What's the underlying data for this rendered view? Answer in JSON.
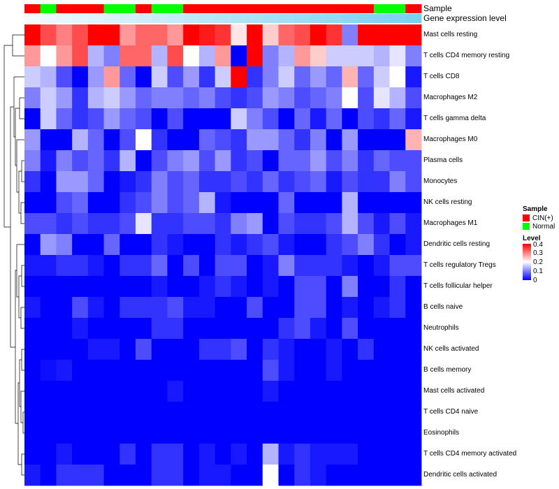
{
  "chart_data": {
    "type": "heatmap",
    "title": "",
    "annotations": {
      "sample_label": "Sample",
      "gene_label": "Gene expression level",
      "sample_track": [
        "CIN(+)",
        "Normal",
        "CIN(+)",
        "CIN(+)",
        "CIN(+)",
        "Normal",
        "Normal",
        "CIN(+)",
        "Normal",
        "Normal",
        "CIN(+)",
        "CIN(+)",
        "CIN(+)",
        "CIN(+)",
        "CIN(+)",
        "CIN(+)",
        "CIN(+)",
        "CIN(+)",
        "CIN(+)",
        "CIN(+)",
        "CIN(+)",
        "CIN(+)",
        "Normal",
        "Normal",
        "CIN(+)"
      ]
    },
    "rows": [
      "Mast cells resting",
      "T cells CD4 memory resting",
      "T cells CD8",
      "Macrophages M2",
      "T cells gamma delta",
      "Macrophages M0",
      "Plasma cells",
      "Monocytes",
      "NK cells resting",
      "Macrophages M1",
      "Dendritic cells resting",
      "T cells regulatory  Tregs",
      "T cells follicular helper",
      "B cells naive",
      "Neutrophils",
      "NK cells activated",
      "B cells memory",
      "Mast cells activated",
      "T cells CD4 naive",
      "Eosinophils",
      "T cells CD4 memory activated",
      "Dendritic cells activated"
    ],
    "values": [
      [
        0.4,
        0.34,
        0.3,
        0.34,
        0.4,
        0.4,
        0.28,
        0.32,
        0.32,
        0.28,
        0.4,
        0.38,
        0.36,
        0.22,
        0.4,
        0.24,
        0.32,
        0.34,
        0.4,
        0.36,
        0.1,
        0.4,
        0.4,
        0.4,
        0.4
      ],
      [
        0.28,
        0.2,
        0.28,
        0.34,
        0.14,
        0.1,
        0.32,
        0.32,
        0.14,
        0.34,
        0.2,
        0.14,
        0.28,
        0.0,
        0.4,
        0.1,
        0.14,
        0.28,
        0.24,
        0.16,
        0.16,
        0.16,
        0.14,
        0.18,
        0.1
      ],
      [
        0.16,
        0.14,
        0.06,
        0.0,
        0.12,
        0.28,
        0.08,
        0.0,
        0.16,
        0.06,
        0.12,
        0.04,
        0.16,
        0.4,
        0.04,
        0.1,
        0.16,
        0.08,
        0.12,
        0.08,
        0.26,
        0.08,
        0.16,
        0.2,
        0.02
      ],
      [
        0.1,
        0.16,
        0.12,
        0.04,
        0.14,
        0.16,
        0.12,
        0.08,
        0.1,
        0.1,
        0.08,
        0.1,
        0.06,
        0.04,
        0.06,
        0.12,
        0.1,
        0.06,
        0.08,
        0.1,
        0.2,
        0.06,
        0.18,
        0.14,
        0.06
      ],
      [
        0.0,
        0.16,
        0.08,
        0.04,
        0.06,
        0.12,
        0.08,
        0.06,
        0.0,
        0.06,
        0.0,
        0.0,
        0.0,
        0.16,
        0.1,
        0.06,
        0.0,
        0.08,
        0.02,
        0.08,
        0.0,
        0.06,
        0.04,
        0.08,
        0.02
      ],
      [
        0.12,
        0.0,
        0.0,
        0.14,
        0.08,
        0.0,
        0.06,
        0.2,
        0.04,
        0.0,
        0.0,
        0.08,
        0.06,
        0.04,
        0.12,
        0.12,
        0.08,
        0.04,
        0.1,
        0.0,
        0.12,
        0.0,
        0.0,
        0.0,
        0.26
      ],
      [
        0.1,
        0.02,
        0.1,
        0.06,
        0.08,
        0.04,
        0.14,
        0.0,
        0.06,
        0.1,
        0.12,
        0.06,
        0.12,
        0.04,
        0.06,
        0.0,
        0.08,
        0.08,
        0.12,
        0.06,
        0.1,
        0.04,
        0.08,
        0.06,
        0.06
      ],
      [
        0.04,
        0.0,
        0.12,
        0.12,
        0.08,
        0.0,
        0.02,
        0.04,
        0.1,
        0.06,
        0.08,
        0.04,
        0.04,
        0.06,
        0.04,
        0.08,
        0.04,
        0.06,
        0.08,
        0.02,
        0.06,
        0.04,
        0.04,
        0.1,
        0.06
      ],
      [
        0.0,
        0.0,
        0.06,
        0.08,
        0.0,
        0.0,
        0.04,
        0.06,
        0.1,
        0.06,
        0.08,
        0.14,
        0.02,
        0.0,
        0.0,
        0.0,
        0.08,
        0.0,
        0.0,
        0.0,
        0.14,
        0.0,
        0.0,
        0.0,
        0.0
      ],
      [
        0.06,
        0.06,
        0.04,
        0.06,
        0.04,
        0.04,
        0.06,
        0.18,
        0.04,
        0.04,
        0.06,
        0.06,
        0.04,
        0.1,
        0.12,
        0.0,
        0.06,
        0.04,
        0.04,
        0.06,
        0.14,
        0.06,
        0.02,
        0.06,
        0.02
      ],
      [
        0.0,
        0.12,
        0.1,
        0.0,
        0.0,
        0.08,
        0.0,
        0.0,
        0.04,
        0.02,
        0.0,
        0.0,
        0.04,
        0.02,
        0.04,
        0.06,
        0.02,
        0.0,
        0.0,
        0.04,
        0.06,
        0.1,
        0.04,
        0.0,
        0.02
      ],
      [
        0.02,
        0.02,
        0.04,
        0.04,
        0.02,
        0.0,
        0.04,
        0.04,
        0.08,
        0.0,
        0.06,
        0.0,
        0.06,
        0.06,
        0.0,
        0.02,
        0.1,
        0.04,
        0.04,
        0.04,
        0.02,
        0.0,
        0.02,
        0.06,
        0.06
      ],
      [
        0.0,
        0.0,
        0.0,
        0.0,
        0.0,
        0.0,
        0.0,
        0.0,
        0.02,
        0.0,
        0.0,
        0.02,
        0.04,
        0.02,
        0.0,
        0.02,
        0.0,
        0.06,
        0.06,
        0.0,
        0.1,
        0.0,
        0.0,
        0.04,
        0.0
      ],
      [
        0.02,
        0.0,
        0.0,
        0.06,
        0.02,
        0.0,
        0.04,
        0.04,
        0.04,
        0.06,
        0.02,
        0.02,
        0.0,
        0.0,
        0.06,
        0.0,
        0.0,
        0.06,
        0.06,
        0.0,
        0.02,
        0.0,
        0.02,
        0.04,
        0.0
      ],
      [
        0.0,
        0.0,
        0.0,
        0.02,
        0.0,
        0.0,
        0.0,
        0.0,
        0.04,
        0.04,
        0.0,
        0.0,
        0.0,
        0.0,
        0.0,
        0.0,
        0.04,
        0.06,
        0.02,
        0.0,
        0.06,
        0.0,
        0.0,
        0.0,
        0.0
      ],
      [
        0.0,
        0.0,
        0.0,
        0.0,
        0.02,
        0.02,
        0.0,
        0.06,
        0.0,
        0.0,
        0.0,
        0.04,
        0.04,
        0.06,
        0.0,
        0.04,
        0.02,
        0.0,
        0.0,
        0.02,
        0.0,
        0.04,
        0.0,
        0.0,
        0.0
      ],
      [
        0.0,
        0.01,
        0.02,
        0.0,
        0.0,
        0.0,
        0.0,
        0.0,
        0.0,
        0.0,
        0.0,
        0.0,
        0.0,
        0.0,
        0.0,
        0.06,
        0.02,
        0.0,
        0.0,
        0.02,
        0.0,
        0.0,
        0.0,
        0.0,
        0.0
      ],
      [
        0.0,
        0.0,
        0.0,
        0.0,
        0.0,
        0.0,
        0.0,
        0.0,
        0.0,
        0.02,
        0.0,
        0.0,
        0.0,
        0.0,
        0.0,
        0.02,
        0.0,
        0.0,
        0.0,
        0.0,
        0.0,
        0.0,
        0.0,
        0.0,
        0.0
      ],
      [
        0.0,
        0.0,
        0.0,
        0.0,
        0.0,
        0.0,
        0.0,
        0.0,
        0.0,
        0.0,
        0.0,
        0.0,
        0.0,
        0.0,
        0.0,
        0.0,
        0.0,
        0.0,
        0.0,
        0.0,
        0.0,
        0.0,
        0.0,
        0.0,
        0.0
      ],
      [
        0.0,
        0.0,
        0.0,
        0.0,
        0.0,
        0.0,
        0.0,
        0.0,
        0.0,
        0.0,
        0.0,
        0.0,
        0.0,
        0.0,
        0.0,
        0.0,
        0.0,
        0.0,
        0.0,
        0.0,
        0.0,
        0.0,
        0.0,
        0.0,
        0.0
      ],
      [
        0.0,
        0.0,
        0.02,
        0.0,
        0.0,
        0.0,
        0.04,
        0.0,
        0.04,
        0.04,
        0.0,
        0.02,
        0.0,
        0.02,
        0.0,
        0.14,
        0.02,
        0.04,
        0.02,
        0.02,
        0.02,
        0.0,
        0.0,
        0.0,
        0.0
      ],
      [
        0.02,
        0.0,
        0.04,
        0.04,
        0.04,
        0.0,
        0.0,
        0.0,
        0.04,
        0.04,
        0.0,
        0.02,
        0.02,
        0.0,
        0.0,
        0.2,
        0.0,
        0.04,
        0.02,
        0.0,
        0.0,
        0.0,
        0.0,
        0.0,
        0.0
      ]
    ],
    "color_scale": {
      "low": "#0000ff",
      "mid": "#ffffff",
      "high": "#ff0000",
      "min": 0,
      "max": 0.4
    },
    "legend": {
      "sample_title": "Sample",
      "sample_items": [
        {
          "label": "CIN(+)",
          "color": "#ff0000"
        },
        {
          "label": "Normal",
          "color": "#00ff00"
        }
      ],
      "level_title": "Level",
      "level_ticks": [
        "0.4",
        "0.3",
        "0.2",
        "0.1",
        "0"
      ]
    },
    "gene_track_colors": {
      "start": "#f2fafd",
      "end": "#77d1f2"
    }
  }
}
